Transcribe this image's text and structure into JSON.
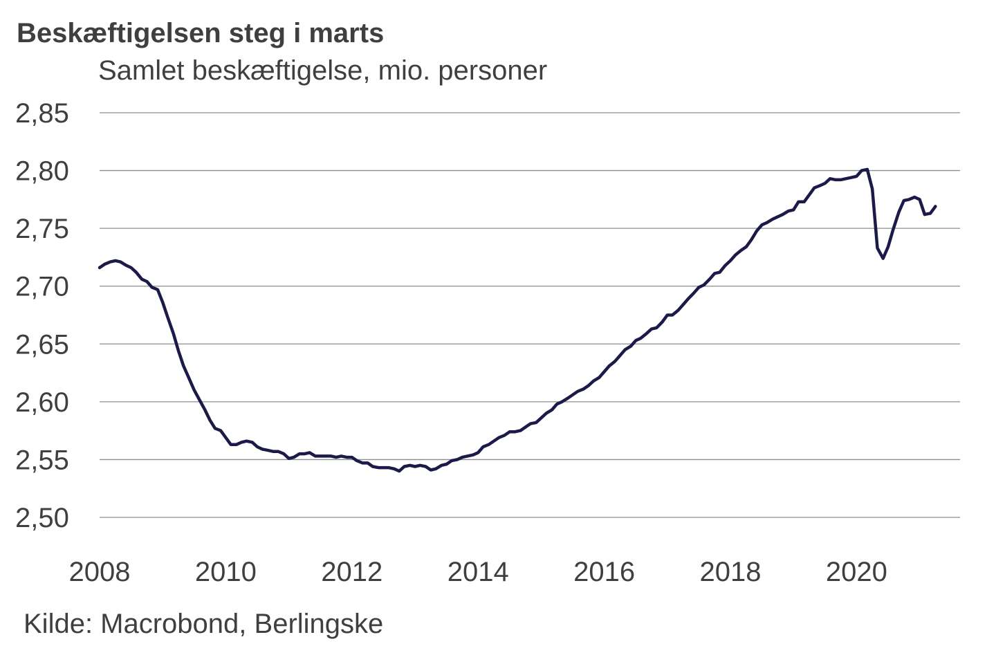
{
  "chart_data": {
    "type": "line",
    "title": "Beskæftigelsen steg i marts",
    "subtitle": "Samlet beskæftigelse, mio. personer",
    "source": "Kilde: Macrobond, Berlingske",
    "xlabel": "",
    "ylabel": "",
    "ylim": [
      2.5,
      2.85
    ],
    "xlim": [
      2008.0,
      2021.5
    ],
    "grid": true,
    "legend": "none",
    "y_ticks": [
      2.5,
      2.55,
      2.6,
      2.65,
      2.7,
      2.75,
      2.8,
      2.85
    ],
    "y_tick_labels": [
      "2,50",
      "2,55",
      "2,60",
      "2,65",
      "2,70",
      "2,75",
      "2,80",
      "2,85"
    ],
    "x_ticks": [
      2008,
      2010,
      2012,
      2014,
      2016,
      2018,
      2020
    ],
    "x_tick_labels": [
      "2008",
      "2010",
      "2012",
      "2014",
      "2016",
      "2018",
      "2020"
    ],
    "series": [
      {
        "name": "Samlet beskæftigelse",
        "color": "#1c1a48",
        "x": [
          2008.0,
          2008.08,
          2008.17,
          2008.25,
          2008.33,
          2008.42,
          2008.5,
          2008.58,
          2008.67,
          2008.75,
          2008.83,
          2008.92,
          2009.0,
          2009.08,
          2009.17,
          2009.25,
          2009.33,
          2009.42,
          2009.5,
          2009.58,
          2009.67,
          2009.75,
          2009.83,
          2009.92,
          2010.0,
          2010.08,
          2010.17,
          2010.25,
          2010.33,
          2010.42,
          2010.5,
          2010.58,
          2010.67,
          2010.75,
          2010.83,
          2010.92,
          2011.0,
          2011.08,
          2011.17,
          2011.25,
          2011.33,
          2011.42,
          2011.5,
          2011.58,
          2011.67,
          2011.75,
          2011.83,
          2011.92,
          2012.0,
          2012.08,
          2012.17,
          2012.25,
          2012.33,
          2012.42,
          2012.5,
          2012.58,
          2012.67,
          2012.75,
          2012.83,
          2012.92,
          2013.0,
          2013.08,
          2013.17,
          2013.25,
          2013.33,
          2013.42,
          2013.5,
          2013.58,
          2013.67,
          2013.75,
          2013.83,
          2013.92,
          2014.0,
          2014.08,
          2014.17,
          2014.25,
          2014.33,
          2014.42,
          2014.5,
          2014.58,
          2014.67,
          2014.75,
          2014.83,
          2014.92,
          2015.0,
          2015.08,
          2015.17,
          2015.25,
          2015.33,
          2015.42,
          2015.5,
          2015.58,
          2015.67,
          2015.75,
          2015.83,
          2015.92,
          2016.0,
          2016.08,
          2016.17,
          2016.25,
          2016.33,
          2016.42,
          2016.5,
          2016.58,
          2016.67,
          2016.75,
          2016.83,
          2016.92,
          2017.0,
          2017.08,
          2017.17,
          2017.25,
          2017.33,
          2017.42,
          2017.5,
          2017.58,
          2017.67,
          2017.75,
          2017.83,
          2017.92,
          2018.0,
          2018.08,
          2018.17,
          2018.25,
          2018.33,
          2018.42,
          2018.5,
          2018.58,
          2018.67,
          2018.75,
          2018.83,
          2018.92,
          2019.0,
          2019.08,
          2019.17,
          2019.25,
          2019.33,
          2019.42,
          2019.5,
          2019.58,
          2019.67,
          2019.75,
          2019.83,
          2019.92,
          2020.0,
          2020.08,
          2020.17,
          2020.25,
          2020.33,
          2020.42,
          2020.5,
          2020.58,
          2020.67,
          2020.75,
          2020.83,
          2020.92,
          2021.0,
          2021.08,
          2021.17,
          2021.25
        ],
        "values": [
          2.716,
          2.719,
          2.721,
          2.722,
          2.721,
          2.718,
          2.716,
          2.712,
          2.706,
          2.704,
          2.699,
          2.697,
          2.686,
          2.673,
          2.659,
          2.644,
          2.631,
          2.62,
          2.61,
          2.602,
          2.593,
          2.584,
          2.577,
          2.575,
          2.569,
          2.563,
          2.563,
          2.565,
          2.566,
          2.565,
          2.561,
          2.559,
          2.558,
          2.557,
          2.557,
          2.555,
          2.551,
          2.552,
          2.555,
          2.555,
          2.556,
          2.553,
          2.553,
          2.553,
          2.553,
          2.552,
          2.553,
          2.552,
          2.552,
          2.549,
          2.547,
          2.547,
          2.544,
          2.543,
          2.543,
          2.543,
          2.542,
          2.54,
          2.544,
          2.545,
          2.544,
          2.545,
          2.544,
          2.541,
          2.542,
          2.545,
          2.546,
          2.549,
          2.55,
          2.552,
          2.553,
          2.554,
          2.556,
          2.561,
          2.563,
          2.566,
          2.569,
          2.571,
          2.574,
          2.574,
          2.575,
          2.578,
          2.581,
          2.582,
          2.586,
          2.59,
          2.593,
          2.598,
          2.6,
          2.603,
          2.606,
          2.609,
          2.611,
          2.614,
          2.618,
          2.621,
          2.626,
          2.631,
          2.635,
          2.64,
          2.645,
          2.648,
          2.653,
          2.655,
          2.659,
          2.663,
          2.664,
          2.669,
          2.675,
          2.675,
          2.679,
          2.684,
          2.689,
          2.694,
          2.699,
          2.701,
          2.706,
          2.711,
          2.712,
          2.718,
          2.722,
          2.727,
          2.731,
          2.734,
          2.74,
          2.748,
          2.753,
          2.755,
          2.758,
          2.76,
          2.762,
          2.765,
          2.766,
          2.773,
          2.773,
          2.779,
          2.785,
          2.787,
          2.789,
          2.793,
          2.792,
          2.792,
          2.793,
          2.794,
          2.795,
          2.8,
          2.801,
          2.784,
          2.733,
          2.724,
          2.734,
          2.749,
          2.764,
          2.774,
          2.775,
          2.777,
          2.775,
          2.762,
          2.763,
          2.769
        ]
      }
    ]
  }
}
